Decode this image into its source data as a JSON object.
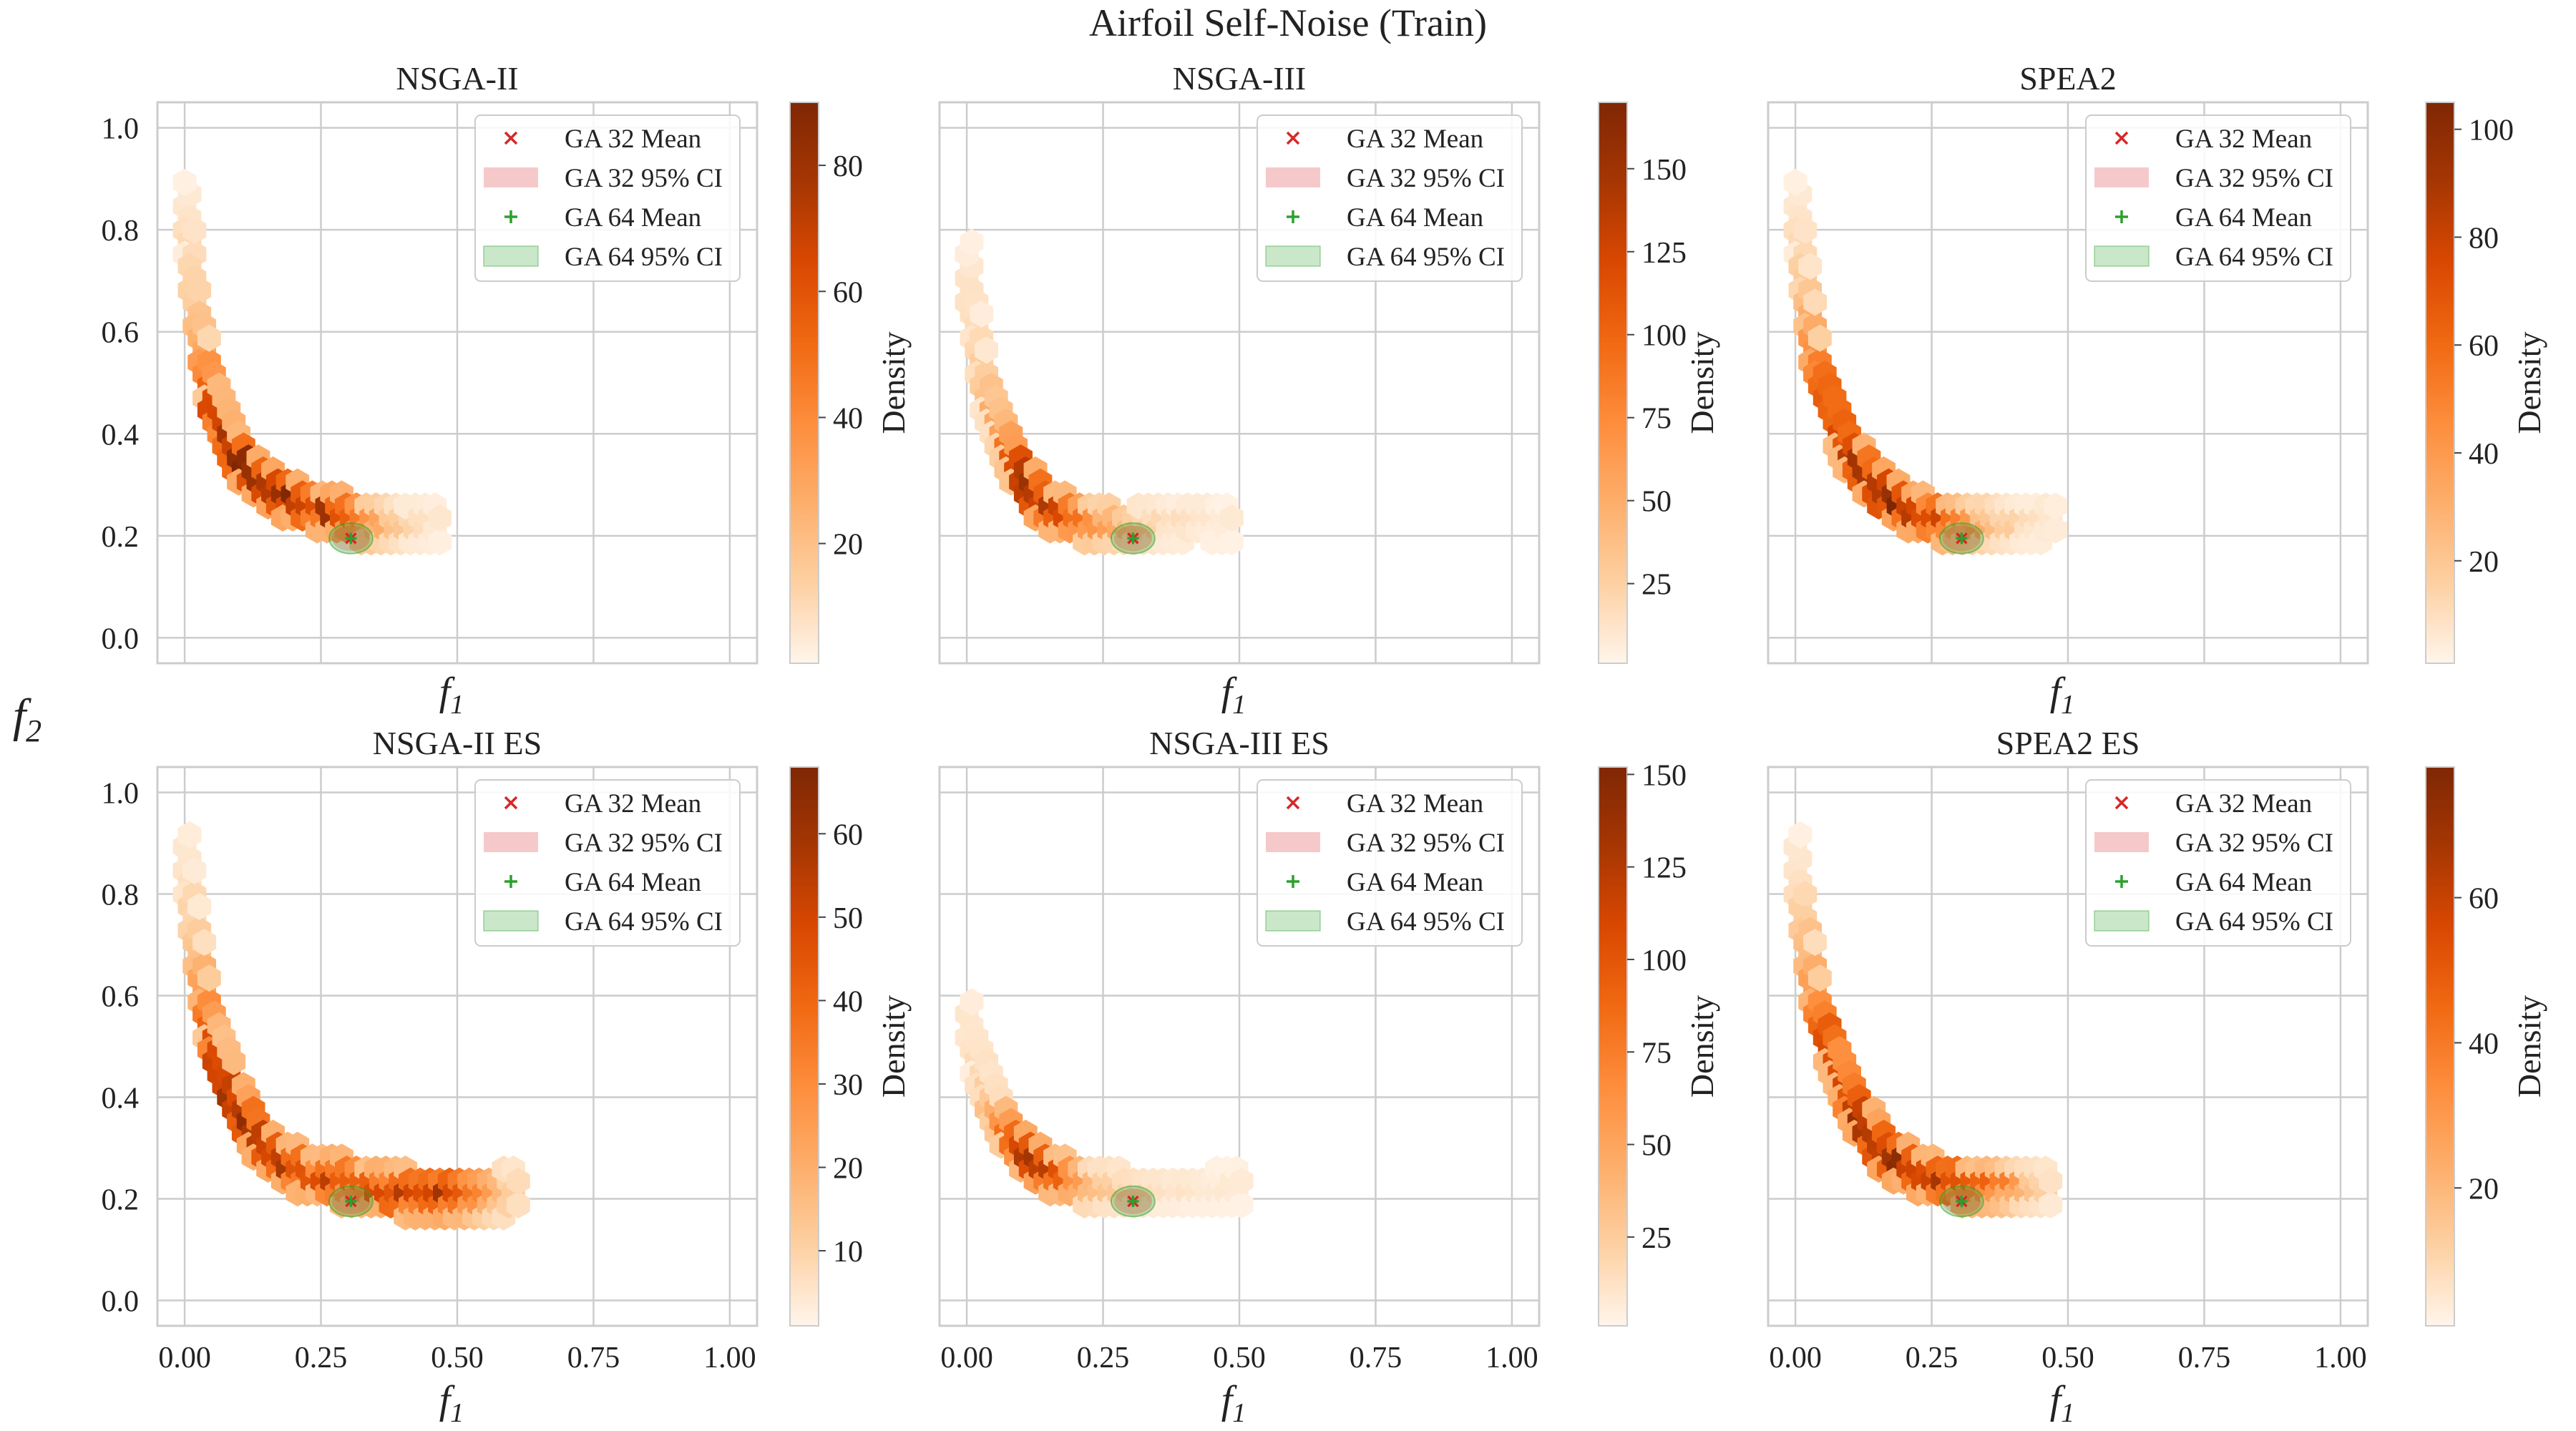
{
  "figure": {
    "suptitle": "Airfoil Self-Noise (Train)",
    "ylabel_main": "f",
    "ylabel_sub": "2",
    "xlabel_main": "f",
    "xlabel_sub": "1"
  },
  "legend": {
    "entries": [
      "GA 32 Mean",
      "GA 32 95% CI",
      "GA 64 Mean",
      "GA 64 95% CI"
    ]
  },
  "colors": {
    "ga32": "#d62728",
    "ga64": "#2ca02c",
    "colormap": [
      "#fff5eb",
      "#fdd0a2",
      "#fdae6b",
      "#fd8d3c",
      "#f16913",
      "#d94801",
      "#a63603",
      "#7f2704"
    ],
    "grid": "#cccccc",
    "spine": "#cccccc"
  },
  "chart_data": [
    {
      "type": "heatmap",
      "subtype": "hexbin",
      "title": "NSGA-II",
      "xlabel": "f1",
      "ylabel": "f2",
      "xlim": [
        -0.05,
        1.05
      ],
      "ylim": [
        -0.05,
        1.05
      ],
      "xticks": [
        0.0,
        0.25,
        0.5,
        0.75,
        1.0
      ],
      "xtick_labels_shown": false,
      "yticks": [
        0.0,
        0.2,
        0.4,
        0.6,
        0.8,
        1.0
      ],
      "ytick_labels": [
        "0.0",
        "0.2",
        "0.4",
        "0.6",
        "0.8",
        "1.0"
      ],
      "colorbar": {
        "label": "Density",
        "range": [
          1,
          90
        ],
        "ticks": [
          20,
          40,
          60,
          80
        ]
      },
      "front_points": [
        [
          0.0,
          0.85,
          0.05
        ],
        [
          0.01,
          0.75,
          0.1
        ],
        [
          0.02,
          0.65,
          0.15
        ],
        [
          0.03,
          0.57,
          0.25
        ],
        [
          0.04,
          0.51,
          0.4
        ],
        [
          0.05,
          0.45,
          0.6
        ],
        [
          0.07,
          0.4,
          0.75
        ],
        [
          0.09,
          0.35,
          0.8
        ],
        [
          0.12,
          0.31,
          0.9
        ],
        [
          0.15,
          0.28,
          0.95
        ],
        [
          0.19,
          0.26,
          0.9
        ],
        [
          0.23,
          0.24,
          0.8
        ],
        [
          0.27,
          0.23,
          0.8
        ],
        [
          0.31,
          0.22,
          0.6
        ],
        [
          0.35,
          0.21,
          0.35
        ],
        [
          0.4,
          0.2,
          0.15
        ],
        [
          0.46,
          0.21,
          0.06
        ]
      ],
      "band": 0.03,
      "ga32_mean": [
        0.305,
        0.195
      ],
      "ga32_ci": [
        0.035,
        0.025
      ],
      "ga64_mean": [
        0.305,
        0.195
      ],
      "ga64_ci": [
        0.04,
        0.03
      ]
    },
    {
      "type": "heatmap",
      "subtype": "hexbin",
      "title": "NSGA-III",
      "xlabel": "f1",
      "ylabel": "f2",
      "xlim": [
        -0.05,
        1.05
      ],
      "ylim": [
        -0.05,
        1.05
      ],
      "xticks": [
        0.0,
        0.25,
        0.5,
        0.75,
        1.0
      ],
      "xtick_labels_shown": false,
      "yticks": [
        0.0,
        0.2,
        0.4,
        0.6,
        0.8,
        1.0
      ],
      "ytick_labels_shown": false,
      "colorbar": {
        "label": "Density",
        "range": [
          1,
          170
        ],
        "ticks": [
          25,
          50,
          75,
          100,
          125,
          150
        ]
      },
      "front_points": [
        [
          0.0,
          0.72,
          0.05
        ],
        [
          0.01,
          0.64,
          0.08
        ],
        [
          0.02,
          0.57,
          0.1
        ],
        [
          0.03,
          0.5,
          0.15
        ],
        [
          0.04,
          0.45,
          0.2
        ],
        [
          0.06,
          0.4,
          0.3
        ],
        [
          0.08,
          0.35,
          0.5
        ],
        [
          0.1,
          0.31,
          0.7
        ],
        [
          0.12,
          0.27,
          0.85
        ],
        [
          0.15,
          0.24,
          0.8
        ],
        [
          0.19,
          0.22,
          0.6
        ],
        [
          0.23,
          0.21,
          0.45
        ],
        [
          0.27,
          0.2,
          0.3
        ],
        [
          0.31,
          0.2,
          0.2
        ],
        [
          0.36,
          0.21,
          0.1
        ],
        [
          0.42,
          0.22,
          0.06
        ],
        [
          0.48,
          0.21,
          0.04
        ]
      ],
      "band": 0.03,
      "ga32_mean": [
        0.305,
        0.195
      ],
      "ga32_ci": [
        0.035,
        0.025
      ],
      "ga64_mean": [
        0.305,
        0.195
      ],
      "ga64_ci": [
        0.04,
        0.03
      ]
    },
    {
      "type": "heatmap",
      "subtype": "hexbin",
      "title": "SPEA2",
      "xlabel": "f1",
      "ylabel": "f2",
      "xlim": [
        -0.05,
        1.05
      ],
      "ylim": [
        -0.05,
        1.05
      ],
      "xticks": [
        0.0,
        0.25,
        0.5,
        0.75,
        1.0
      ],
      "xtick_labels_shown": false,
      "yticks": [
        0.0,
        0.2,
        0.4,
        0.6,
        0.8,
        1.0
      ],
      "ytick_labels_shown": false,
      "colorbar": {
        "label": "Density",
        "range": [
          1,
          105
        ],
        "ticks": [
          20,
          40,
          60,
          80,
          100
        ]
      },
      "front_points": [
        [
          0.0,
          0.85,
          0.05
        ],
        [
          0.01,
          0.75,
          0.1
        ],
        [
          0.02,
          0.66,
          0.2
        ],
        [
          0.03,
          0.58,
          0.35
        ],
        [
          0.04,
          0.52,
          0.45
        ],
        [
          0.06,
          0.46,
          0.55
        ],
        [
          0.08,
          0.4,
          0.6
        ],
        [
          0.1,
          0.35,
          0.7
        ],
        [
          0.13,
          0.31,
          0.85
        ],
        [
          0.16,
          0.27,
          0.95
        ],
        [
          0.2,
          0.24,
          0.85
        ],
        [
          0.24,
          0.22,
          0.75
        ],
        [
          0.28,
          0.21,
          0.6
        ],
        [
          0.32,
          0.21,
          0.4
        ],
        [
          0.37,
          0.2,
          0.2
        ],
        [
          0.42,
          0.21,
          0.1
        ],
        [
          0.47,
          0.22,
          0.05
        ]
      ],
      "band": 0.03,
      "ga32_mean": [
        0.305,
        0.195
      ],
      "ga32_ci": [
        0.035,
        0.025
      ],
      "ga64_mean": [
        0.305,
        0.195
      ],
      "ga64_ci": [
        0.04,
        0.03
      ]
    },
    {
      "type": "heatmap",
      "subtype": "hexbin",
      "title": "NSGA-II ES",
      "xlabel": "f1",
      "ylabel": "f2",
      "xlim": [
        -0.05,
        1.05
      ],
      "ylim": [
        -0.05,
        1.05
      ],
      "xticks": [
        0.0,
        0.25,
        0.5,
        0.75,
        1.0
      ],
      "xtick_labels": [
        "0.00",
        "0.25",
        "0.50",
        "0.75",
        "1.00"
      ],
      "yticks": [
        0.0,
        0.2,
        0.4,
        0.6,
        0.8,
        1.0
      ],
      "ytick_labels": [
        "0.0",
        "0.2",
        "0.4",
        "0.6",
        "0.8",
        "1.0"
      ],
      "colorbar": {
        "label": "Density",
        "range": [
          1,
          68
        ],
        "ticks": [
          10,
          20,
          30,
          40,
          50,
          60
        ]
      },
      "front_points": [
        [
          0.0,
          0.87,
          0.05
        ],
        [
          0.01,
          0.78,
          0.1
        ],
        [
          0.02,
          0.7,
          0.15
        ],
        [
          0.03,
          0.62,
          0.3
        ],
        [
          0.04,
          0.56,
          0.45
        ],
        [
          0.05,
          0.5,
          0.6
        ],
        [
          0.07,
          0.44,
          0.7
        ],
        [
          0.09,
          0.38,
          0.8
        ],
        [
          0.12,
          0.33,
          0.85
        ],
        [
          0.15,
          0.28,
          0.85
        ],
        [
          0.19,
          0.25,
          0.75
        ],
        [
          0.23,
          0.23,
          0.75
        ],
        [
          0.27,
          0.22,
          0.7
        ],
        [
          0.32,
          0.21,
          0.65
        ],
        [
          0.37,
          0.2,
          0.75
        ],
        [
          0.42,
          0.19,
          0.7
        ],
        [
          0.47,
          0.19,
          0.8
        ],
        [
          0.52,
          0.19,
          0.6
        ],
        [
          0.57,
          0.19,
          0.3
        ],
        [
          0.61,
          0.2,
          0.1
        ]
      ],
      "band": 0.035,
      "ga32_mean": [
        0.305,
        0.195
      ],
      "ga32_ci": [
        0.035,
        0.025
      ],
      "ga64_mean": [
        0.305,
        0.195
      ],
      "ga64_ci": [
        0.04,
        0.03
      ]
    },
    {
      "type": "heatmap",
      "subtype": "hexbin",
      "title": "NSGA-III ES",
      "xlabel": "f1",
      "ylabel": "f2",
      "xlim": [
        -0.05,
        1.05
      ],
      "ylim": [
        -0.05,
        1.05
      ],
      "xticks": [
        0.0,
        0.25,
        0.5,
        0.75,
        1.0
      ],
      "xtick_labels": [
        "0.00",
        "0.25",
        "0.50",
        "0.75",
        "1.00"
      ],
      "yticks": [
        0.0,
        0.2,
        0.4,
        0.6,
        0.8,
        1.0
      ],
      "ytick_labels_shown": false,
      "colorbar": {
        "label": "Density",
        "range": [
          1,
          152
        ],
        "ticks": [
          25,
          50,
          75,
          100,
          125,
          150
        ]
      },
      "front_points": [
        [
          0.0,
          0.55,
          0.05
        ],
        [
          0.01,
          0.5,
          0.06
        ],
        [
          0.02,
          0.46,
          0.08
        ],
        [
          0.03,
          0.42,
          0.12
        ],
        [
          0.04,
          0.38,
          0.18
        ],
        [
          0.06,
          0.34,
          0.3
        ],
        [
          0.08,
          0.31,
          0.5
        ],
        [
          0.1,
          0.28,
          0.7
        ],
        [
          0.12,
          0.26,
          0.9
        ],
        [
          0.15,
          0.24,
          0.75
        ],
        [
          0.19,
          0.22,
          0.45
        ],
        [
          0.23,
          0.21,
          0.25
        ],
        [
          0.28,
          0.2,
          0.15
        ],
        [
          0.33,
          0.2,
          0.1
        ],
        [
          0.38,
          0.2,
          0.07
        ],
        [
          0.44,
          0.2,
          0.05
        ],
        [
          0.5,
          0.21,
          0.04
        ]
      ],
      "band": 0.03,
      "ga32_mean": [
        0.305,
        0.195
      ],
      "ga32_ci": [
        0.035,
        0.025
      ],
      "ga64_mean": [
        0.305,
        0.195
      ],
      "ga64_ci": [
        0.04,
        0.03
      ]
    },
    {
      "type": "heatmap",
      "subtype": "hexbin",
      "title": "SPEA2 ES",
      "xlabel": "f1",
      "ylabel": "f2",
      "xlim": [
        -0.05,
        1.05
      ],
      "ylim": [
        -0.05,
        1.05
      ],
      "xticks": [
        0.0,
        0.25,
        0.5,
        0.75,
        1.0
      ],
      "xtick_labels": [
        "0.00",
        "0.25",
        "0.50",
        "0.75",
        "1.00"
      ],
      "yticks": [
        0.0,
        0.2,
        0.4,
        0.6,
        0.8,
        1.0
      ],
      "ytick_labels_shown": false,
      "colorbar": {
        "label": "Density",
        "range": [
          1,
          78
        ],
        "ticks": [
          20,
          40,
          60
        ]
      },
      "front_points": [
        [
          0.0,
          0.87,
          0.05
        ],
        [
          0.01,
          0.78,
          0.1
        ],
        [
          0.02,
          0.7,
          0.2
        ],
        [
          0.03,
          0.63,
          0.3
        ],
        [
          0.04,
          0.56,
          0.45
        ],
        [
          0.06,
          0.5,
          0.6
        ],
        [
          0.08,
          0.44,
          0.7
        ],
        [
          0.1,
          0.38,
          0.75
        ],
        [
          0.13,
          0.33,
          0.85
        ],
        [
          0.16,
          0.28,
          0.9
        ],
        [
          0.2,
          0.25,
          0.85
        ],
        [
          0.24,
          0.23,
          0.8
        ],
        [
          0.28,
          0.22,
          0.75
        ],
        [
          0.32,
          0.21,
          0.7
        ],
        [
          0.36,
          0.21,
          0.6
        ],
        [
          0.41,
          0.21,
          0.3
        ],
        [
          0.46,
          0.2,
          0.12
        ]
      ],
      "band": 0.03,
      "ga32_mean": [
        0.305,
        0.195
      ],
      "ga32_ci": [
        0.035,
        0.025
      ],
      "ga64_mean": [
        0.305,
        0.195
      ],
      "ga64_ci": [
        0.04,
        0.03
      ]
    }
  ]
}
